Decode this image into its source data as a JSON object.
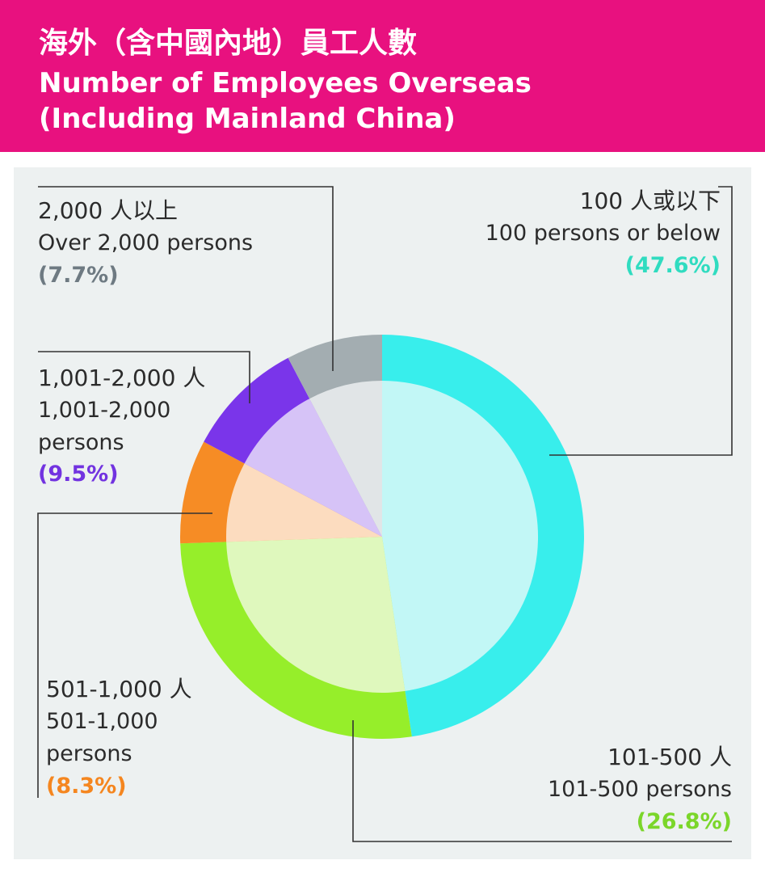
{
  "header": {
    "title_zh": "海外（含中國內地）員工人數",
    "title_en_line1": "Number of Employees Overseas",
    "title_en_line2": "(Including Mainland China)"
  },
  "colors": {
    "header_bg": "#e8117f",
    "panel_bg": "#edf1f1",
    "leader_line": "#333333"
  },
  "chart_data": {
    "type": "pie",
    "style": "pie with outer ring",
    "start": "top, clockwise",
    "slices": [
      {
        "label_zh": "100 人或以下",
        "label_en": "100 persons or below",
        "value": 47.6,
        "pct_text": "(47.6%)",
        "ring_color": "#38eeec",
        "fill_color": "#c2f7f6",
        "text_color": "#30dcc0"
      },
      {
        "label_zh": "101-500 人",
        "label_en": "101-500 persons",
        "value": 26.8,
        "pct_text": "(26.8%)",
        "ring_color": "#96ee2a",
        "fill_color": "#dff8bd",
        "text_color": "#7bd62a"
      },
      {
        "label_zh": "501-1,000 人",
        "label_en_line1": "501-1,000",
        "label_en_line2": "persons",
        "value": 8.3,
        "pct_text": "(8.3%)",
        "ring_color": "#f68c25",
        "fill_color": "#fcdcbf",
        "text_color": "#f5861f"
      },
      {
        "label_zh": "1,001-2,000 人",
        "label_en_line1": "1,001-2,000",
        "label_en_line2": "persons",
        "value": 9.5,
        "pct_text": "(9.5%)",
        "ring_color": "#7a35ea",
        "fill_color": "#d6c3f7",
        "text_color": "#7233e0"
      },
      {
        "label_zh": "2,000 人以上",
        "label_en": "Over 2,000 persons",
        "value": 7.7,
        "pct_text": "(7.7%)",
        "ring_color": "#a3adb1",
        "fill_color": "#e1e5e7",
        "text_color": "#6e7a82"
      }
    ]
  }
}
